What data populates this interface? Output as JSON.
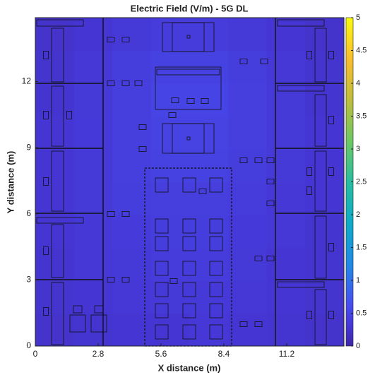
{
  "chart_data": {
    "type": "heatmap",
    "title": "Electric Field (V/m) - 5G DL",
    "x_label": "X distance (m)",
    "y_label": "Y distance (m)",
    "xlim": [
      0,
      13.75
    ],
    "ylim": [
      0,
      14.9
    ],
    "xticks": [
      0,
      2.8,
      5.6,
      8.4,
      11.2
    ],
    "yticks": [
      0,
      3,
      6,
      9,
      12
    ],
    "colormap": "parula",
    "clim": [
      0,
      5
    ],
    "cticks": [
      0,
      0.5,
      1,
      1.5,
      2,
      2.5,
      3,
      3.5,
      4,
      4.5,
      5
    ],
    "z": [
      [
        0.25,
        0.28,
        0.3,
        0.3,
        0.32,
        0.3,
        0.28,
        0.25
      ],
      [
        0.27,
        0.3,
        0.32,
        0.35,
        0.35,
        0.32,
        0.3,
        0.27
      ],
      [
        0.28,
        0.32,
        0.35,
        0.38,
        0.38,
        0.35,
        0.3,
        0.28
      ],
      [
        0.3,
        0.33,
        0.37,
        0.4,
        0.4,
        0.36,
        0.32,
        0.28
      ],
      [
        0.3,
        0.35,
        0.4,
        0.42,
        0.42,
        0.38,
        0.33,
        0.3
      ],
      [
        0.3,
        0.35,
        0.42,
        0.45,
        0.45,
        0.4,
        0.35,
        0.3
      ],
      [
        0.3,
        0.36,
        0.42,
        0.48,
        0.48,
        0.42,
        0.35,
        0.3
      ],
      [
        0.28,
        0.35,
        0.42,
        0.5,
        0.5,
        0.42,
        0.35,
        0.28
      ],
      [
        0.27,
        0.33,
        0.4,
        0.45,
        0.45,
        0.4,
        0.33,
        0.27
      ],
      [
        0.25,
        0.3,
        0.35,
        0.38,
        0.38,
        0.35,
        0.3,
        0.25
      ]
    ]
  }
}
